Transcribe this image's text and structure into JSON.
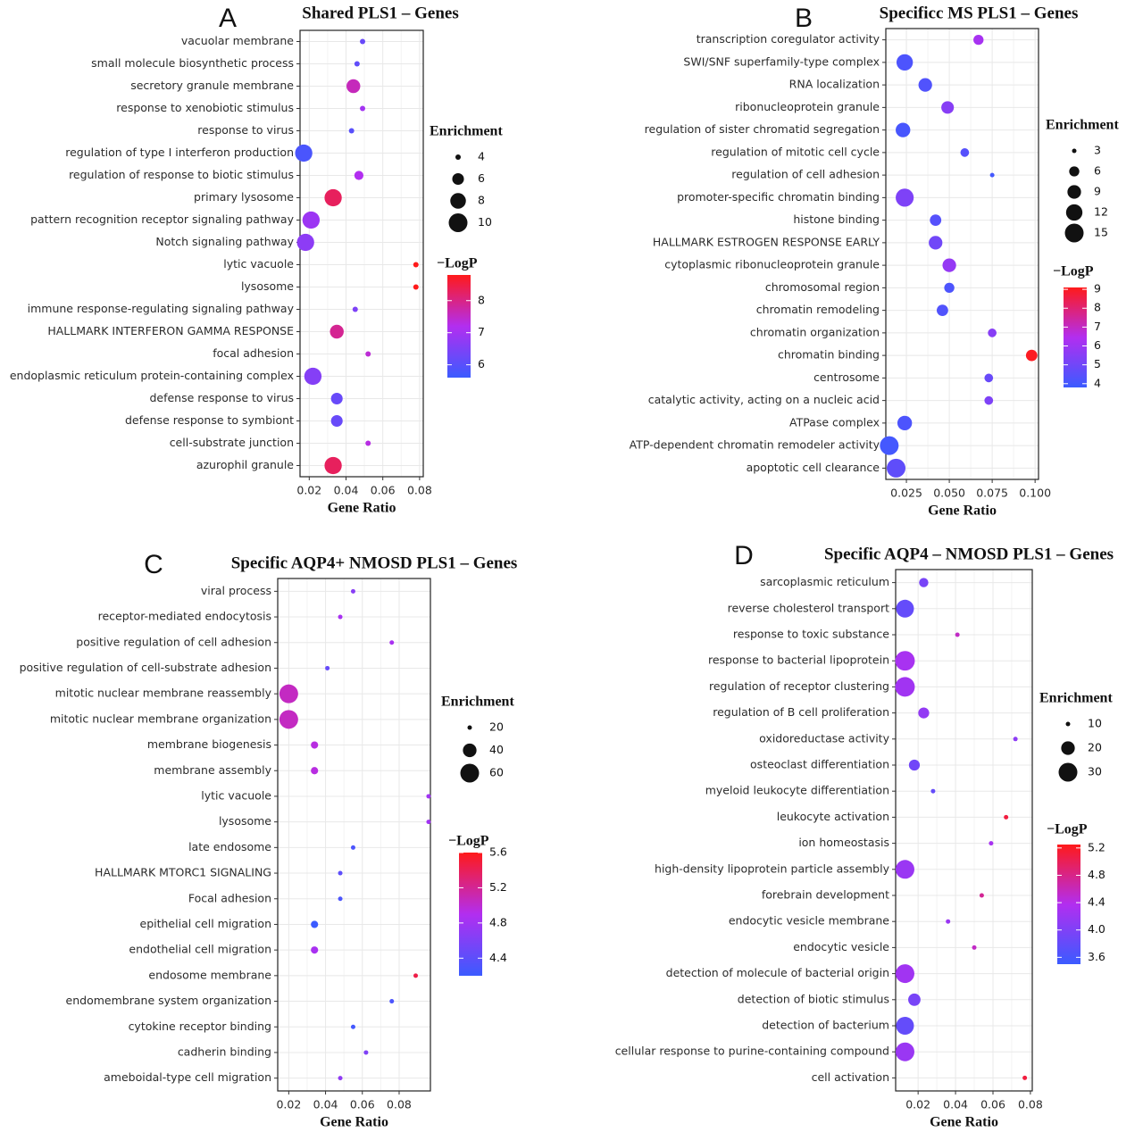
{
  "colors": {
    "low": "#3b5bff",
    "mid": "#b22ef0",
    "high": "#ff1a1a"
  },
  "chart_data": [
    {
      "type": "scatter",
      "panel": "A",
      "title": "Shared PLS1 – Genes",
      "xlabel": "Gene Ratio",
      "xlim": [
        0.015,
        0.082
      ],
      "xticks": [
        0.02,
        0.04,
        0.06,
        0.08
      ],
      "xtick_labels": [
        "0.02",
        "0.04",
        "0.06",
        "0.08"
      ],
      "categories": [
        "vacuolar membrane",
        "small molecule biosynthetic process",
        "secretory granule membrane",
        "response to xenobiotic stimulus",
        "response to virus",
        "regulation of type I interferon production",
        "regulation of response to biotic stimulus",
        "primary lysosome",
        "pattern recognition receptor signaling pathway",
        "Notch signaling pathway",
        "lytic vacuole",
        "lysosome",
        "immune response-regulating signaling pathway",
        "HALLMARK INTERFERON GAMMA RESPONSE",
        "focal adhesion",
        "endoplasmic reticulum protein-containing complex",
        "defense response to virus",
        "defense response to symbiont",
        "cell-substrate junction",
        "azurophil granule"
      ],
      "x": [
        0.049,
        0.046,
        0.044,
        0.049,
        0.043,
        0.017,
        0.047,
        0.033,
        0.021,
        0.018,
        0.078,
        0.078,
        0.045,
        0.035,
        0.052,
        0.022,
        0.035,
        0.035,
        0.052,
        0.033
      ],
      "size": [
        4,
        4,
        7,
        4,
        4,
        9,
        5,
        9,
        9,
        9,
        3,
        3,
        4,
        7,
        4,
        9,
        6,
        6,
        4,
        9
      ],
      "color_value": [
        6.2,
        6.1,
        7.6,
        7.0,
        6.0,
        5.8,
        7.2,
        8.3,
        6.9,
        6.7,
        8.8,
        8.8,
        6.5,
        7.9,
        7.4,
        6.6,
        6.2,
        6.2,
        7.3,
        8.3
      ],
      "size_legend": {
        "title": "Enrichment",
        "values": [
          4,
          6,
          8,
          10
        ],
        "labels": [
          "4",
          "6",
          "8",
          "10"
        ]
      },
      "color_legend": {
        "title": "−LogP",
        "min": 5.6,
        "max": 8.8,
        "ticks": [
          6,
          7,
          8
        ],
        "labels": [
          "6",
          "7",
          "8"
        ]
      }
    },
    {
      "type": "scatter",
      "panel": "B",
      "title": "Specificc MS PLS1 – Genes",
      "xlabel": "Gene Ratio",
      "xlim": [
        0.013,
        0.102
      ],
      "xticks": [
        0.025,
        0.05,
        0.075,
        0.1
      ],
      "xtick_labels": [
        "0.025",
        "0.050",
        "0.075",
        "0.100"
      ],
      "categories": [
        "transcription coregulator activity",
        "SWI/SNF superfamily-type complex",
        "RNA localization",
        "ribonucleoprotein granule",
        "regulation of sister chromatid segregation",
        "regulation of mitotic cell cycle",
        "regulation of cell adhesion",
        "promoter-specific chromatin binding",
        "histone binding",
        "HALLMARK ESTROGEN RESPONSE EARLY",
        "cytoplasmic ribonucleoprotein granule",
        "chromosomal region",
        "chromatin remodeling",
        "chromatin organization",
        "chromatin binding",
        "centrosome",
        "catalytic activity, acting on a nucleic acid",
        "ATPase complex",
        "ATP-dependent chromatin remodeler activity",
        "apoptotic cell clearance"
      ],
      "x": [
        0.067,
        0.024,
        0.036,
        0.049,
        0.023,
        0.059,
        0.075,
        0.024,
        0.042,
        0.042,
        0.05,
        0.05,
        0.046,
        0.075,
        0.098,
        0.073,
        0.073,
        0.024,
        0.015,
        0.019
      ],
      "size": [
        6,
        12,
        9,
        8,
        10,
        5,
        3,
        14,
        7,
        9,
        9,
        6,
        7,
        5,
        7,
        5,
        5,
        10,
        15,
        15
      ],
      "color_value": [
        6.2,
        4.2,
        4.3,
        5.5,
        4.1,
        4.4,
        4.0,
        5.3,
        4.4,
        5.0,
        5.8,
        4.2,
        4.3,
        5.5,
        9.0,
        4.8,
        5.3,
        4.2,
        4.0,
        4.6
      ],
      "size_legend": {
        "title": "Enrichment",
        "values": [
          3,
          6,
          9,
          12,
          15
        ],
        "labels": [
          "3",
          "6",
          "9",
          "12",
          "15"
        ]
      },
      "color_legend": {
        "title": "−LogP",
        "min": 3.8,
        "max": 9.1,
        "ticks": [
          4,
          5,
          6,
          7,
          8,
          9
        ],
        "labels": [
          "4",
          "5",
          "6",
          "7",
          "8",
          "9"
        ]
      }
    },
    {
      "type": "scatter",
      "panel": "C",
      "title": "Specific AQP4+ NMOSD PLS1 – Genes",
      "xlabel": "Gene Ratio",
      "xlim": [
        0.014,
        0.097
      ],
      "xticks": [
        0.02,
        0.04,
        0.06,
        0.08
      ],
      "xtick_labels": [
        "0.02",
        "0.04",
        "0.06",
        "0.08"
      ],
      "categories": [
        "viral process",
        "receptor-mediated endocytosis",
        "positive regulation of cell adhesion",
        "positive regulation of cell-substrate adhesion",
        "mitotic nuclear membrane reassembly",
        "mitotic nuclear membrane organization",
        "membrane biogenesis",
        "membrane assembly",
        "lytic vacuole",
        "lysosome",
        "late endosome",
        "HALLMARK MTORC1 SIGNALING",
        "Focal adhesion",
        "epithelial cell migration",
        "endothelial cell migration",
        "endosome membrane",
        "endomembrane system organization",
        "cytokine receptor binding",
        "cadherin binding",
        "ameboidal-type cell migration"
      ],
      "x": [
        0.055,
        0.048,
        0.076,
        0.041,
        0.02,
        0.02,
        0.034,
        0.034,
        0.096,
        0.096,
        0.055,
        0.048,
        0.048,
        0.034,
        0.034,
        0.089,
        0.076,
        0.055,
        0.062,
        0.048
      ],
      "size": [
        14,
        14,
        7,
        14,
        60,
        60,
        24,
        24,
        5,
        5,
        7,
        10,
        10,
        24,
        24,
        9,
        7,
        7,
        7,
        14
      ],
      "color_value": [
        4.65,
        4.85,
        4.85,
        4.45,
        5.05,
        5.05,
        4.95,
        4.95,
        4.8,
        4.8,
        4.3,
        4.4,
        4.3,
        4.2,
        4.85,
        5.45,
        4.3,
        4.25,
        4.6,
        4.7
      ],
      "size_legend": {
        "title": "Enrichment",
        "values": [
          20,
          40,
          60
        ],
        "labels": [
          "20",
          "40",
          "60"
        ]
      },
      "color_legend": {
        "title": "−LogP",
        "min": 4.2,
        "max": 5.6,
        "ticks": [
          4.4,
          4.8,
          5.2,
          5.6
        ],
        "labels": [
          "4.4",
          "4.8",
          "5.2",
          "5.6"
        ]
      }
    },
    {
      "type": "scatter",
      "panel": "D",
      "title": "Specific AQP4 – NMOSD PLS1 – Genes",
      "xlabel": "Gene Ratio",
      "xlim": [
        0.008,
        0.081
      ],
      "xticks": [
        0.02,
        0.04,
        0.06,
        0.08
      ],
      "xtick_labels": [
        "0.02",
        "0.04",
        "0.06",
        "0.08"
      ],
      "categories": [
        "sarcoplasmic reticulum",
        "reverse cholesterol transport",
        "response to toxic substance",
        "response to bacterial lipoprotein",
        "regulation of receptor clustering",
        "regulation of B cell proliferation",
        "oxidoreductase activity",
        "osteoclast differentiation",
        "myeloid leukocyte differentiation",
        "leukocyte activation",
        "ion homeostasis",
        "high-density lipoprotein particle assembly",
        "forebrain development",
        "endocytic vesicle membrane",
        "endocytic vesicle",
        "detection of molecule of bacterial origin",
        "detection of biotic stimulus",
        "detection of bacterium",
        "cellular response to purine-containing compound",
        "cell activation"
      ],
      "x": [
        0.023,
        0.013,
        0.041,
        0.013,
        0.013,
        0.023,
        0.072,
        0.018,
        0.028,
        0.067,
        0.059,
        0.013,
        0.054,
        0.036,
        0.05,
        0.013,
        0.018,
        0.013,
        0.013,
        0.077
      ],
      "size": [
        14,
        28,
        8,
        32,
        32,
        16,
        4,
        16,
        10,
        6,
        6,
        30,
        7,
        9,
        7,
        30,
        18,
        28,
        30,
        6
      ],
      "color_value": [
        3.95,
        3.8,
        4.55,
        4.3,
        4.25,
        4.15,
        4.1,
        3.9,
        3.8,
        5.1,
        4.3,
        4.2,
        4.75,
        4.2,
        4.55,
        4.25,
        3.95,
        3.8,
        4.2,
        5.1
      ],
      "size_legend": {
        "title": "Enrichment",
        "values": [
          10,
          20,
          30
        ],
        "labels": [
          "10",
          "20",
          "30"
        ]
      },
      "color_legend": {
        "title": "−LogP",
        "min": 3.5,
        "max": 5.25,
        "ticks": [
          3.6,
          4.0,
          4.4,
          4.8,
          5.2
        ],
        "labels": [
          "3.6",
          "4.0",
          "4.4",
          "4.8",
          "5.2"
        ]
      }
    }
  ]
}
